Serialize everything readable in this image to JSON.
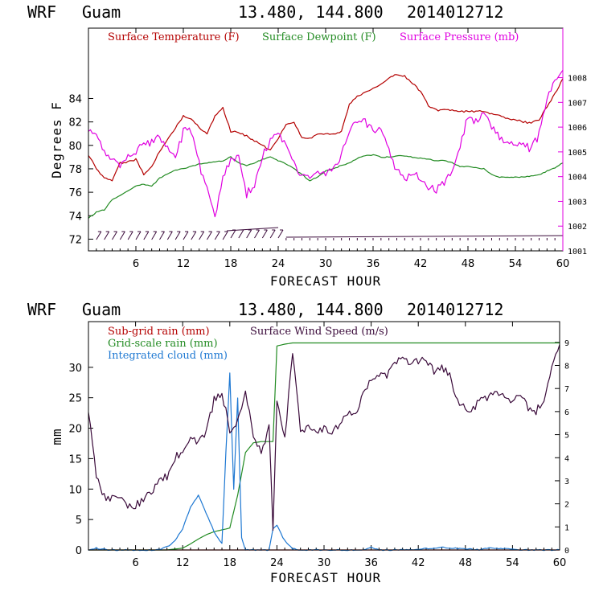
{
  "header": {
    "model": "WRF",
    "site": "Guam",
    "coords": "13.480, 144.800",
    "init": "2014012712"
  },
  "colors": {
    "temperature": "#b40000",
    "dewpoint": "#228b22",
    "pressure": "#e000e0",
    "subgrid_rain": "#b40000",
    "gridscale_rain": "#228b22",
    "cloud": "#1e78d2",
    "wind": "#3a0a3a"
  },
  "chart_data": [
    {
      "type": "line",
      "title": "",
      "xlabel": "FORECAST HOUR",
      "ylabel": "Degrees F",
      "xlim": [
        0,
        60
      ],
      "ylim": [
        71,
        90
      ],
      "y2lim": [
        1001,
        1010
      ],
      "xticks": [
        "6",
        "12",
        "18",
        "24",
        "30",
        "36",
        "42",
        "48",
        "54",
        "60"
      ],
      "yticks": [
        "72",
        "74",
        "76",
        "78",
        "80",
        "82",
        "84"
      ],
      "y2ticks": [
        "1001",
        "1002",
        "1003",
        "1004",
        "1005",
        "1006",
        "1007",
        "1008"
      ],
      "legend": [
        "Surface Temperature (F)",
        "Surface Dewpoint (F)",
        "Surface Pressure (mb)"
      ],
      "series": [
        {
          "name": "Surface Temperature (F)",
          "axis": "left",
          "x": [
            0,
            1,
            2,
            3,
            4,
            5,
            6,
            7,
            8,
            9,
            10,
            11,
            12,
            13,
            14,
            15,
            16,
            17,
            18,
            19,
            20,
            21,
            22,
            23,
            24,
            25,
            26,
            27,
            28,
            29,
            30,
            31,
            32,
            33,
            34,
            35,
            36,
            37,
            38,
            39,
            40,
            41,
            42,
            43,
            44,
            45,
            46,
            47,
            48,
            49,
            50,
            51,
            52,
            53,
            54,
            55,
            56,
            57,
            58,
            59,
            60
          ],
          "y": [
            79.2,
            78,
            77.2,
            77,
            78.5,
            78.6,
            78.8,
            77.5,
            78.2,
            79.5,
            80.5,
            81.5,
            82.5,
            82.3,
            81.5,
            81,
            82.5,
            83.2,
            81.2,
            81.1,
            80.8,
            80.4,
            80,
            79.6,
            80.6,
            81.8,
            82,
            80.6,
            80.6,
            81,
            81,
            81,
            81.2,
            83.5,
            84.2,
            84.5,
            84.8,
            85.2,
            85.7,
            86.1,
            85.9,
            85.3,
            84.6,
            83.4,
            83,
            83,
            83,
            82.9,
            82.9,
            82.9,
            82.9,
            82.7,
            82.5,
            82.3,
            82.2,
            82,
            81.9,
            82.2,
            83.3,
            84.4,
            85.7
          ]
        },
        {
          "name": "Surface Dewpoint (F)",
          "axis": "left",
          "x": [
            0,
            1,
            2,
            3,
            4,
            5,
            6,
            7,
            8,
            9,
            10,
            11,
            12,
            13,
            14,
            15,
            16,
            17,
            18,
            19,
            20,
            21,
            22,
            23,
            24,
            25,
            26,
            27,
            28,
            29,
            30,
            31,
            32,
            33,
            34,
            35,
            36,
            37,
            38,
            39,
            40,
            41,
            42,
            43,
            44,
            45,
            46,
            47,
            48,
            49,
            50,
            51,
            52,
            53,
            54,
            55,
            56,
            57,
            58,
            59,
            60
          ],
          "y": [
            73.8,
            74.3,
            74.5,
            75.4,
            75.7,
            76.1,
            76.5,
            76.7,
            76.5,
            77.2,
            77.6,
            77.9,
            78,
            78.2,
            78.4,
            78.5,
            78.6,
            78.7,
            79,
            78.5,
            78.3,
            78.5,
            78.8,
            79,
            78.7,
            78.4,
            78,
            77.5,
            77,
            77.3,
            77.8,
            78,
            78.3,
            78.5,
            78.9,
            79.1,
            79.2,
            79.0,
            79.0,
            79.1,
            79.1,
            79.0,
            78.9,
            78.8,
            78.7,
            78.7,
            78.5,
            78.2,
            78.2,
            78.1,
            78,
            77.5,
            77.3,
            77.3,
            77.3,
            77.3,
            77.4,
            77.5,
            77.8,
            78.1,
            78.5
          ]
        },
        {
          "name": "Surface Pressure (mb)",
          "axis": "right",
          "x": [
            0,
            1,
            2,
            3,
            4,
            5,
            6,
            7,
            8,
            9,
            10,
            11,
            12,
            13,
            14,
            15,
            16,
            17,
            18,
            19,
            20,
            21,
            22,
            23,
            24,
            25,
            26,
            27,
            28,
            29,
            30,
            31,
            32,
            33,
            34,
            35,
            36,
            37,
            38,
            39,
            40,
            41,
            42,
            43,
            44,
            45,
            46,
            47,
            48,
            49,
            50,
            51,
            52,
            53,
            54,
            55,
            56,
            57,
            58,
            59,
            60
          ],
          "y": [
            1005.8,
            1005.6,
            1005.1,
            1004.6,
            1004.5,
            1004.9,
            1005.0,
            1005.3,
            1005.4,
            1005.6,
            1005.1,
            1004.8,
            1005.8,
            1005.9,
            1004.5,
            1003.5,
            1002.4,
            1004.0,
            1004.6,
            1005.0,
            1003.3,
            1003.7,
            1004.9,
            1005.5,
            1005.6,
            1005.3,
            1004.5,
            1004.1,
            1003.9,
            1004.1,
            1004.2,
            1004.3,
            1004.8,
            1005.9,
            1006.3,
            1006.2,
            1005.9,
            1005.8,
            1005.0,
            1004.3,
            1003.9,
            1004.1,
            1004.0,
            1003.6,
            1003.4,
            1003.8,
            1004.2,
            1005.3,
            1006.4,
            1006.2,
            1006.5,
            1006.0,
            1005.6,
            1005.3,
            1005.4,
            1005.3,
            1005.1,
            1005.7,
            1007.1,
            1007.8,
            1008.3
          ]
        }
      ]
    },
    {
      "type": "line",
      "title": "",
      "xlabel": "FORECAST HOUR",
      "ylabel": "mm",
      "xlim": [
        0,
        60
      ],
      "ylim": [
        0,
        37.5
      ],
      "y2lim": [
        0,
        9.9
      ],
      "xticks": [
        "6",
        "12",
        "18",
        "24",
        "30",
        "36",
        "42",
        "48",
        "54",
        "60"
      ],
      "yticks": [
        "0",
        "5",
        "10",
        "15",
        "20",
        "25",
        "30"
      ],
      "y2ticks": [
        "0",
        "1",
        "2",
        "3",
        "4",
        "5",
        "6",
        "7",
        "8",
        "9"
      ],
      "legend": [
        "Sub-grid rain (mm)",
        "Grid-scale rain (mm)",
        "Integrated cloud (mm)",
        "Surface Wind Speed (m/s)"
      ],
      "series": [
        {
          "name": "Sub-grid rain (mm)",
          "axis": "left",
          "x": [
            0,
            60
          ],
          "y": [
            0,
            0
          ]
        },
        {
          "name": "Grid-scale rain (mm)",
          "axis": "left",
          "x": [
            0,
            10,
            12,
            13,
            14,
            15,
            16,
            17,
            18,
            19,
            20,
            21,
            22,
            23,
            23.5,
            24,
            25,
            26,
            30,
            40,
            50,
            60
          ],
          "y": [
            0,
            0,
            0.3,
            1.0,
            1.8,
            2.5,
            3.0,
            3.3,
            3.6,
            9,
            16,
            17.6,
            17.8,
            17.8,
            17.8,
            33.5,
            33.8,
            34,
            34,
            34,
            34,
            34
          ]
        },
        {
          "name": "Integrated cloud (mm)",
          "axis": "left",
          "x": [
            0,
            1,
            2,
            3,
            9,
            10,
            11,
            12,
            13,
            14,
            15,
            16,
            17,
            17.5,
            18,
            18.5,
            19,
            19.5,
            20,
            21,
            22,
            23,
            23.5,
            24,
            25,
            26,
            27,
            30,
            35,
            36,
            37,
            40,
            45,
            50,
            51,
            55,
            60
          ],
          "y": [
            0,
            0.3,
            0.1,
            0,
            0,
            0.5,
            1.5,
            3.5,
            7,
            9,
            6,
            3,
            1,
            16,
            29,
            10,
            25,
            2,
            0,
            0,
            0,
            0,
            3.5,
            4,
            1.5,
            0.2,
            0,
            0,
            0,
            0.5,
            0,
            0,
            0.4,
            0,
            0.4,
            0,
            0
          ]
        },
        {
          "name": "Surface Wind Speed (m/s)",
          "axis": "right",
          "x": [
            0,
            1,
            2,
            3,
            4,
            5,
            6,
            7,
            8,
            9,
            10,
            11,
            12,
            13,
            14,
            15,
            16,
            17,
            18,
            19,
            20,
            21,
            22,
            23,
            23.5,
            24,
            25,
            26,
            27,
            28,
            29,
            30,
            31,
            32,
            33,
            34,
            35,
            36,
            37,
            38,
            39,
            40,
            41,
            42,
            43,
            44,
            45,
            46,
            47,
            48,
            49,
            50,
            51,
            52,
            53,
            54,
            55,
            56,
            57,
            58,
            59,
            60
          ],
          "y": [
            6.0,
            3.2,
            2.3,
            2.2,
            2.2,
            1.9,
            1.9,
            2.2,
            2.5,
            3.1,
            3.2,
            4.0,
            4.3,
            4.9,
            4.7,
            5.1,
            6.5,
            6.8,
            5.2,
            5.6,
            6.8,
            5.0,
            4.3,
            5.3,
            1.0,
            6.6,
            4.8,
            8.5,
            5.1,
            5.3,
            5.2,
            5.3,
            5.0,
            5.5,
            5.9,
            5.9,
            6.8,
            7.5,
            7.5,
            7.6,
            8.1,
            8.3,
            8.1,
            8.2,
            8.3,
            7.7,
            7.9,
            7.6,
            6.4,
            6.2,
            6.1,
            6.6,
            6.6,
            6.8,
            6.7,
            6.5,
            6.6,
            6.2,
            6.0,
            6.6,
            7.8,
            8.9
          ]
        }
      ]
    }
  ]
}
